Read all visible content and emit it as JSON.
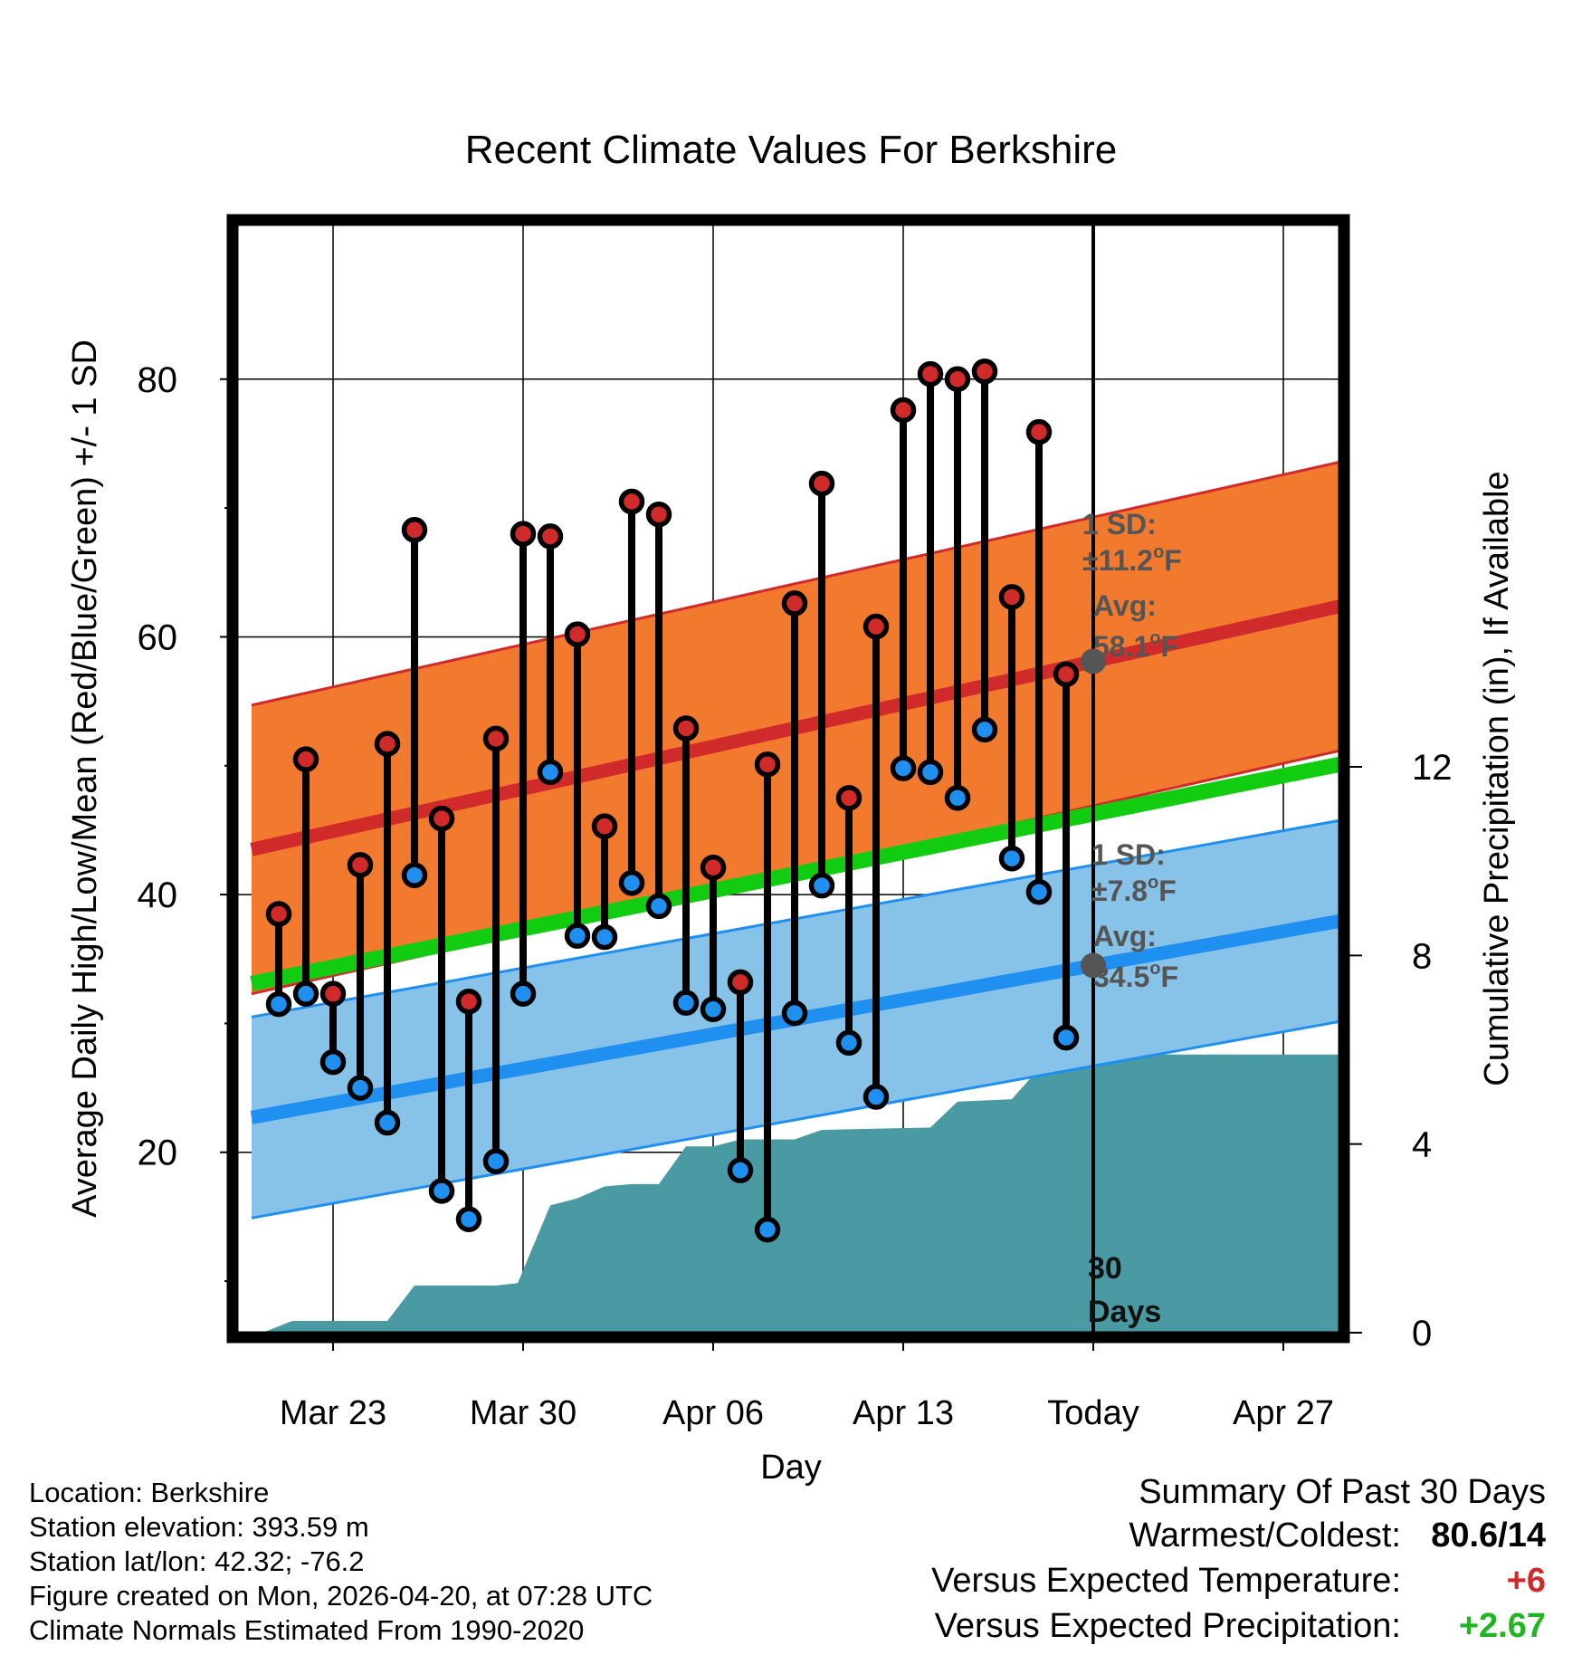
{
  "chart_data": {
    "type": "climate-range",
    "title": "Recent Climate Values For Berkshire",
    "xlabel": "Day",
    "ylabel": "Average Daily High/Low/Mean (Red/Blue/Green) +/- 1 SD",
    "ylabel_right": "Cumulative Precipitation (in), If Available",
    "x_ticks": [
      {
        "day": 3,
        "label": "Mar 23"
      },
      {
        "day": 10,
        "label": "Mar 30"
      },
      {
        "day": 17,
        "label": "Apr 06"
      },
      {
        "day": 24,
        "label": "Apr 13"
      },
      {
        "day": 31,
        "label": "Today"
      },
      {
        "day": 38,
        "label": "Apr 27"
      }
    ],
    "x_range": [
      0,
      41
    ],
    "y_ticks": [
      20,
      40,
      60,
      80
    ],
    "y_minor_ticks": [
      10,
      30,
      50,
      70
    ],
    "ylim": [
      6,
      92
    ],
    "y2_ticks": [
      0,
      4,
      8,
      12
    ],
    "y2lim": [
      0,
      23.5
    ],
    "high_normal": {
      "start": 43.5,
      "end": 62.8,
      "sd": 11.2
    },
    "low_normal": {
      "start": 22.7,
      "end": 38.3,
      "sd": 7.8
    },
    "mean_normal": {
      "start": 33.1,
      "end": 50.5
    },
    "today_day": 31,
    "today_label_lines": [
      "30",
      "Days"
    ],
    "high_annotation": {
      "sd_label": "1 SD:",
      "sd_value": "±11.2",
      "avg_label": "Avg:",
      "avg_value": "58.1",
      "unit": "o",
      "unit_suffix": "F",
      "value": 58.1
    },
    "low_annotation": {
      "sd_label": "1 SD:",
      "sd_value": "±7.8",
      "avg_label": "Avg:",
      "avg_value": "34.5",
      "unit": "o",
      "unit_suffix": "F",
      "value": 34.5
    },
    "daily": [
      {
        "day": 1,
        "high": 38.5,
        "low": 31.5
      },
      {
        "day": 2,
        "high": 50.5,
        "low": 32.3
      },
      {
        "day": 3,
        "high": 32.3,
        "low": 27.0
      },
      {
        "day": 4,
        "high": 42.3,
        "low": 25.0
      },
      {
        "day": 5,
        "high": 51.7,
        "low": 22.3
      },
      {
        "day": 6,
        "high": 68.3,
        "low": 41.5
      },
      {
        "day": 7,
        "high": 45.9,
        "low": 17.0
      },
      {
        "day": 8,
        "high": 31.7,
        "low": 14.8
      },
      {
        "day": 9,
        "high": 52.1,
        "low": 19.3
      },
      {
        "day": 10,
        "high": 68.0,
        "low": 32.3
      },
      {
        "day": 11,
        "high": 67.8,
        "low": 49.5
      },
      {
        "day": 12,
        "high": 60.2,
        "low": 36.8
      },
      {
        "day": 13,
        "high": 45.3,
        "low": 36.7
      },
      {
        "day": 14,
        "high": 70.5,
        "low": 40.9
      },
      {
        "day": 15,
        "high": 69.5,
        "low": 39.1
      },
      {
        "day": 16,
        "high": 52.9,
        "low": 31.6
      },
      {
        "day": 17,
        "high": 42.1,
        "low": 31.1
      },
      {
        "day": 18,
        "high": 33.2,
        "low": 18.6
      },
      {
        "day": 19,
        "high": 50.1,
        "low": 14.0
      },
      {
        "day": 20,
        "high": 62.6,
        "low": 30.8
      },
      {
        "day": 21,
        "high": 71.9,
        "low": 40.7
      },
      {
        "day": 22,
        "high": 47.5,
        "low": 28.5
      },
      {
        "day": 23,
        "high": 60.8,
        "low": 24.3
      },
      {
        "day": 24,
        "high": 77.6,
        "low": 49.8
      },
      {
        "day": 25,
        "high": 80.4,
        "low": 49.5
      },
      {
        "day": 26,
        "high": 80.0,
        "low": 47.5
      },
      {
        "day": 27,
        "high": 80.6,
        "low": 52.8
      },
      {
        "day": 28,
        "high": 63.1,
        "low": 42.8
      },
      {
        "day": 29,
        "high": 75.9,
        "low": 40.2
      },
      {
        "day": 30,
        "high": 57.1,
        "low": 28.9
      }
    ],
    "precip_cumulative": [
      {
        "day": 0.4,
        "value": 0.0
      },
      {
        "day": 1.5,
        "value": 0.25
      },
      {
        "day": 5.0,
        "value": 0.25
      },
      {
        "day": 6.0,
        "value": 1.0
      },
      {
        "day": 9.0,
        "value": 1.0
      },
      {
        "day": 9.8,
        "value": 1.05
      },
      {
        "day": 11.0,
        "value": 2.7
      },
      {
        "day": 12.0,
        "value": 2.85
      },
      {
        "day": 13.0,
        "value": 3.1
      },
      {
        "day": 14.0,
        "value": 3.15
      },
      {
        "day": 15.0,
        "value": 3.15
      },
      {
        "day": 16.0,
        "value": 3.95
      },
      {
        "day": 17.0,
        "value": 3.95
      },
      {
        "day": 18.0,
        "value": 4.1
      },
      {
        "day": 20.0,
        "value": 4.1
      },
      {
        "day": 21.0,
        "value": 4.3
      },
      {
        "day": 25.0,
        "value": 4.35
      },
      {
        "day": 26.0,
        "value": 4.9
      },
      {
        "day": 28.0,
        "value": 4.95
      },
      {
        "day": 29.0,
        "value": 5.6
      },
      {
        "day": 30.0,
        "value": 5.9
      },
      {
        "day": 40.5,
        "value": 5.9
      }
    ],
    "colors": {
      "high_band": "#f27a2e",
      "high_line": "#d12a2a",
      "low_band": "#87c3e8",
      "low_line": "#1f8ff0",
      "mean_line": "#11cc11",
      "precip": "#4a9aa4",
      "high_marker": "#d12a2a",
      "low_marker": "#1f8ff0",
      "avg_marker": "#555555"
    }
  },
  "info": {
    "location": "Location: Berkshire",
    "elevation": "Station elevation: 393.59 m",
    "latlon": "Station lat/lon: 42.32; -76.2",
    "created": "Figure created on Mon, 2026-04-20, at 07:28 UTC",
    "normals": "Climate Normals Estimated From 1990-2020"
  },
  "summary": {
    "title": "Summary Of Past 30 Days",
    "warmest_label": "Warmest/Coldest:",
    "warmest_value": "80.6/14",
    "temp_label": "Versus Expected Temperature:",
    "temp_value": "+6",
    "temp_color": "#d12a2a",
    "precip_label": "Versus Expected Precipitation:",
    "precip_value": "+2.67",
    "precip_color": "#22b522"
  }
}
